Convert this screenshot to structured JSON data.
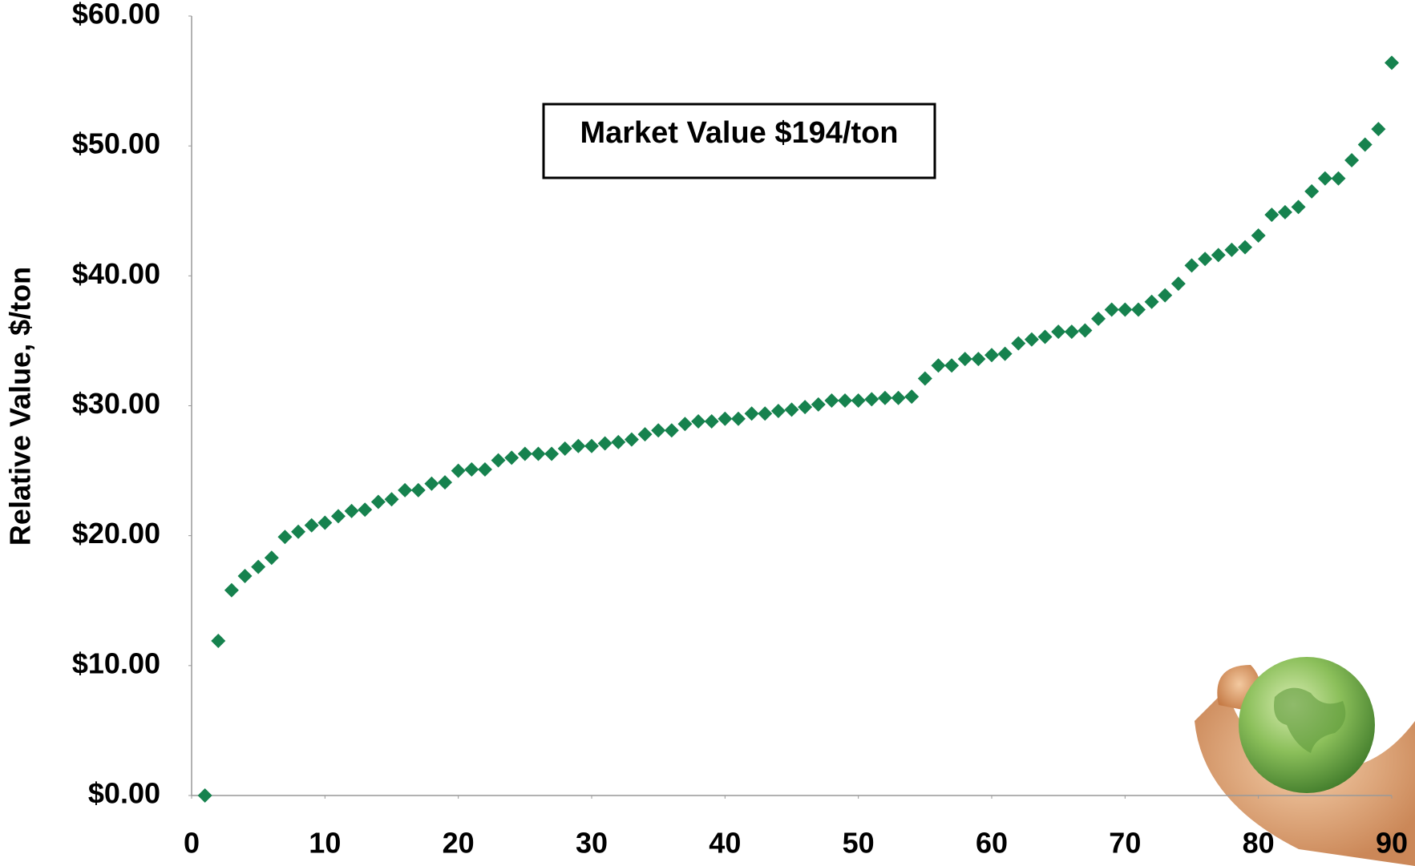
{
  "chart_data": {
    "type": "scatter",
    "y_label": "Relative Value, $/ton",
    "annotation": "Market Value $194/ton",
    "color": "#16824e",
    "marker": "diamond",
    "x": [
      1,
      2,
      3,
      4,
      5,
      6,
      7,
      8,
      9,
      10,
      11,
      12,
      13,
      14,
      15,
      16,
      17,
      18,
      19,
      20,
      21,
      22,
      23,
      24,
      25,
      26,
      27,
      28,
      29,
      30,
      31,
      32,
      33,
      34,
      35,
      36,
      37,
      38,
      39,
      40,
      41,
      42,
      43,
      44,
      45,
      46,
      47,
      48,
      49,
      50,
      51,
      52,
      53,
      54,
      55,
      56,
      57,
      58,
      59,
      60,
      61,
      62,
      63,
      64,
      65,
      66,
      67,
      68,
      69,
      70,
      71,
      72,
      73,
      74,
      75,
      76,
      77,
      78,
      79,
      80,
      81,
      82,
      83,
      84,
      85,
      86,
      87,
      88,
      89,
      90
    ],
    "values": [
      0,
      11.9,
      15.8,
      16.9,
      17.6,
      18.3,
      19.9,
      20.3,
      20.8,
      21.0,
      21.5,
      21.9,
      22.0,
      22.6,
      22.8,
      23.5,
      23.5,
      24.0,
      24.1,
      25.0,
      25.1,
      25.1,
      25.8,
      26.0,
      26.3,
      26.3,
      26.3,
      26.7,
      26.9,
      26.9,
      27.1,
      27.2,
      27.4,
      27.8,
      28.1,
      28.1,
      28.6,
      28.8,
      28.8,
      29.0,
      29.0,
      29.4,
      29.4,
      29.6,
      29.7,
      29.9,
      30.1,
      30.4,
      30.4,
      30.4,
      30.5,
      30.6,
      30.6,
      30.7,
      32.1,
      33.1,
      33.1,
      33.6,
      33.6,
      33.9,
      34.0,
      34.8,
      35.1,
      35.3,
      35.7,
      35.7,
      35.8,
      36.7,
      37.4,
      37.4,
      37.4,
      38.0,
      38.5,
      39.4,
      40.8,
      41.3,
      41.6,
      42.0,
      42.2,
      43.1,
      44.7,
      44.9,
      45.3,
      46.5,
      47.5,
      47.5,
      48.9,
      50.1,
      51.3,
      56.4
    ],
    "xlim": [
      0,
      90
    ],
    "xticks": [
      0,
      10,
      20,
      30,
      40,
      50,
      60,
      70,
      80,
      90
    ],
    "ylim": [
      0,
      60
    ],
    "yticks": [
      {
        "value": 0,
        "label": "$0.00"
      },
      {
        "value": 10,
        "label": "$10.00"
      },
      {
        "value": 20,
        "label": "$20.00"
      },
      {
        "value": 30,
        "label": "$30.00"
      },
      {
        "value": 40,
        "label": "$40.00"
      },
      {
        "value": 50,
        "label": "$50.00"
      },
      {
        "value": 60,
        "label": "$60.00"
      }
    ],
    "grid": false
  }
}
